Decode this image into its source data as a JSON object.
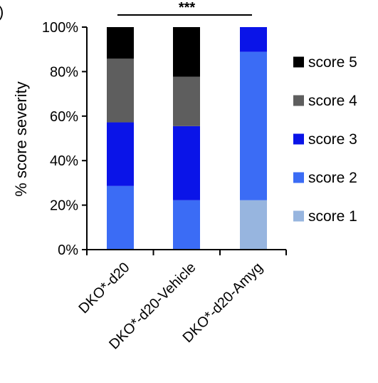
{
  "panel_label": ")",
  "chart_data": {
    "type": "bar",
    "stacked": true,
    "categories": [
      "DKO*-d20",
      "DKO*-d20-Vehicle",
      "DKO*-d20-Amyg"
    ],
    "ylabel": "% score severity",
    "ylim": [
      0,
      100
    ],
    "yticks": [
      "0%",
      "20%",
      "40%",
      "60%",
      "80%",
      "100%"
    ],
    "grid": false,
    "legend_position": "right",
    "significance": {
      "label": "***",
      "from_category": 0,
      "to_category": 2
    },
    "series": [
      {
        "name": "score 1",
        "color": "#97b5df",
        "values": [
          0,
          0,
          22.2
        ]
      },
      {
        "name": "score 2",
        "color": "#3b6cf5",
        "values": [
          28.6,
          22.2,
          66.7
        ]
      },
      {
        "name": "score 3",
        "color": "#0a14e8",
        "values": [
          28.6,
          33.3,
          11.1
        ]
      },
      {
        "name": "score 4",
        "color": "#5e5e5e",
        "values": [
          28.6,
          22.2,
          0
        ]
      },
      {
        "name": "score 5",
        "color": "#000000",
        "values": [
          14.2,
          22.3,
          0
        ]
      }
    ],
    "legend_labels_visible": [
      "score 5",
      "score 4",
      "score 3",
      "score 2",
      "score 1"
    ]
  }
}
